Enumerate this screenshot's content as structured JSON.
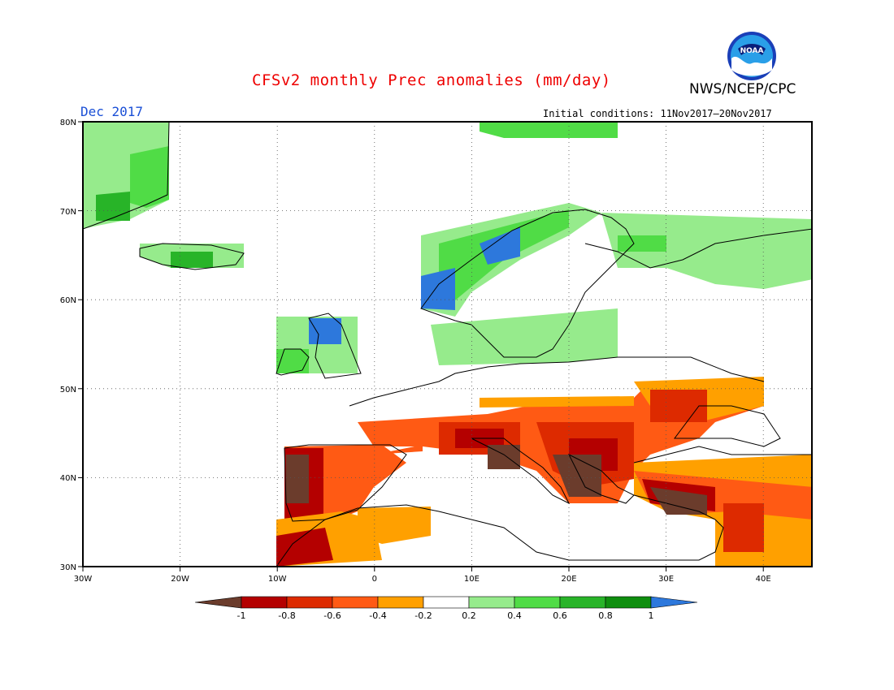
{
  "header": {
    "title": "CFSv2 monthly Prec anomalies (mm/day)",
    "agency": "NWS/NCEP/CPC",
    "month": "Dec 2017",
    "initial_conditions": "Initial conditions: 11Nov2017–20Nov2017",
    "logo_text": "NOAA"
  },
  "map": {
    "lon_range": [
      -30,
      45
    ],
    "lat_range": [
      30,
      80
    ],
    "lon_ticks": [
      "30W",
      "20W",
      "10W",
      "0",
      "10E",
      "20E",
      "30E",
      "40E"
    ],
    "lat_ticks": [
      "30N",
      "40N",
      "50N",
      "60N",
      "70N",
      "80N"
    ],
    "gridlines": "dotted"
  },
  "colorbar": {
    "labels": [
      "-1",
      "-0.8",
      "-0.6",
      "-0.4",
      "-0.2",
      "0.2",
      "0.4",
      "0.6",
      "0.8",
      "1"
    ],
    "colors": [
      "#6b3c2c",
      "#b40000",
      "#dd2a00",
      "#ff5a14",
      "#ffa000",
      "#ffffff",
      "#96eb8c",
      "#50dc46",
      "#28b428",
      "#0e8e0e",
      "#2d78dc"
    ]
  },
  "anomaly_regions": [
    {
      "name": "greenland",
      "color": "#96eb8c"
    },
    {
      "name": "norway-coast",
      "color": "#2d78dc"
    },
    {
      "name": "iberia",
      "color": "#dd2a00"
    },
    {
      "name": "italy-balkans",
      "color": "#ff5a14"
    },
    {
      "name": "turkey",
      "color": "#ffa000"
    }
  ]
}
